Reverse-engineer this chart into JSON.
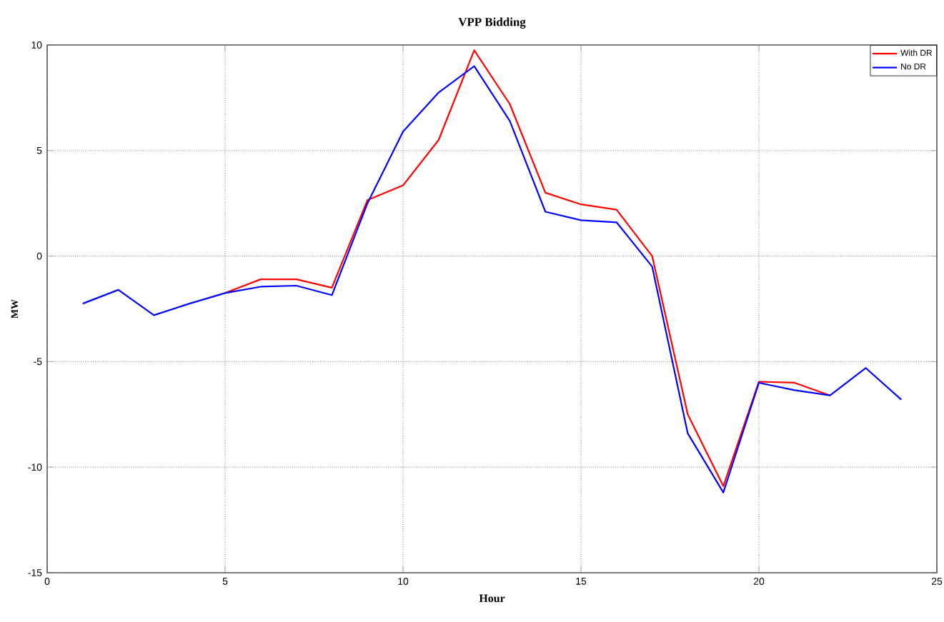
{
  "chart_data": {
    "type": "line",
    "title": "VPP Bidding",
    "xlabel": "Hour",
    "ylabel": "MW",
    "x": [
      1,
      2,
      3,
      4,
      5,
      6,
      7,
      8,
      9,
      10,
      11,
      12,
      13,
      14,
      15,
      16,
      17,
      18,
      19,
      20,
      21,
      22,
      23,
      24
    ],
    "series": [
      {
        "name": "With DR",
        "color": "#ff0000",
        "values": [
          null,
          null,
          null,
          null,
          -1.75,
          -1.1,
          -1.1,
          -1.5,
          2.65,
          3.35,
          5.5,
          9.75,
          7.2,
          3.0,
          2.45,
          2.2,
          0.0,
          -7.5,
          -10.9,
          -5.95,
          -6.0,
          -6.6,
          null,
          null
        ]
      },
      {
        "name": "No DR",
        "color": "#0000ff",
        "values": [
          -2.25,
          -1.6,
          -2.8,
          -2.25,
          -1.75,
          -1.45,
          -1.4,
          -1.85,
          2.5,
          5.9,
          7.75,
          9.0,
          6.4,
          2.1,
          1.7,
          1.6,
          -0.5,
          -8.4,
          -11.2,
          -6.0,
          -6.35,
          -6.6,
          -5.3,
          -6.8
        ]
      }
    ],
    "xlim": [
      0,
      25
    ],
    "xticks": [
      0,
      5,
      10,
      15,
      20,
      25
    ],
    "ylim": [
      -15,
      10
    ],
    "yticks": [
      -15,
      -10,
      -5,
      0,
      5,
      10
    ],
    "grid": true,
    "legend": "top right",
    "marker": "none",
    "line_style": "solid"
  }
}
